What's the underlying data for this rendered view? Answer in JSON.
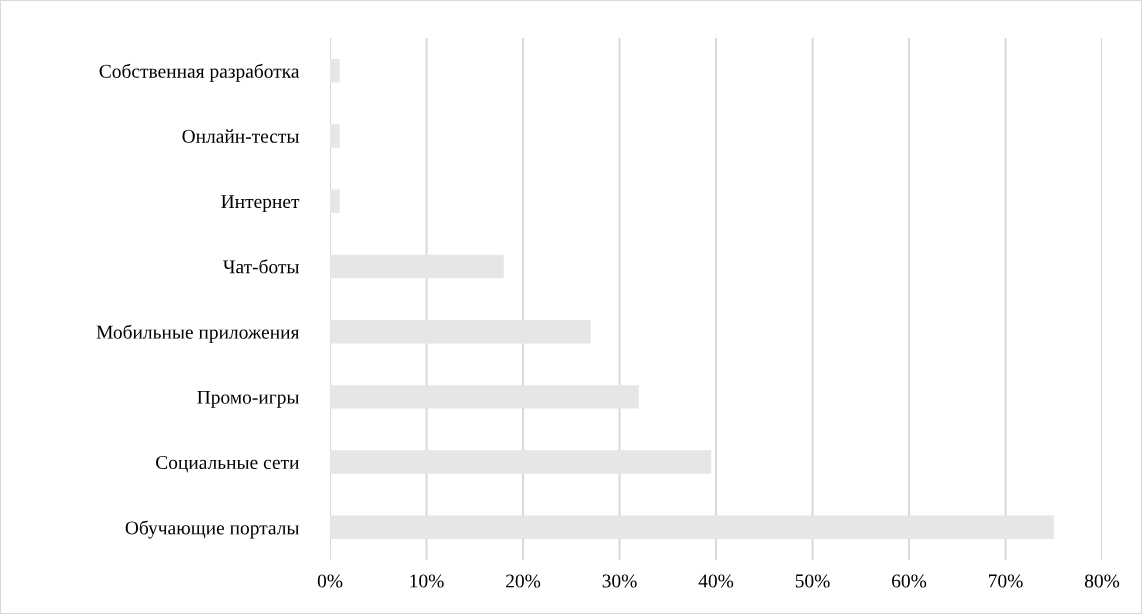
{
  "chart_data": {
    "type": "bar",
    "orientation": "horizontal",
    "categories": [
      "Собственная разработка",
      "Онлайн-тесты",
      "Интернет",
      "Чат-боты",
      "Мобильные приложения",
      "Промо-игры",
      "Социальные сети",
      "Обучающие порталы"
    ],
    "values": [
      1,
      1,
      1,
      18,
      27,
      32,
      39.5,
      75
    ],
    "color": "#e6e6e6",
    "xlim": [
      0,
      80
    ],
    "xticks": [
      {
        "value": 0,
        "label": "0%"
      },
      {
        "value": 10,
        "label": "10%"
      },
      {
        "value": 20,
        "label": "20%"
      },
      {
        "value": 30,
        "label": "30%"
      },
      {
        "value": 40,
        "label": "40%"
      },
      {
        "value": 50,
        "label": "50%"
      },
      {
        "value": 60,
        "label": "60%"
      },
      {
        "value": 70,
        "label": "70%"
      },
      {
        "value": 80,
        "label": "80%"
      }
    ],
    "grid": "x"
  }
}
